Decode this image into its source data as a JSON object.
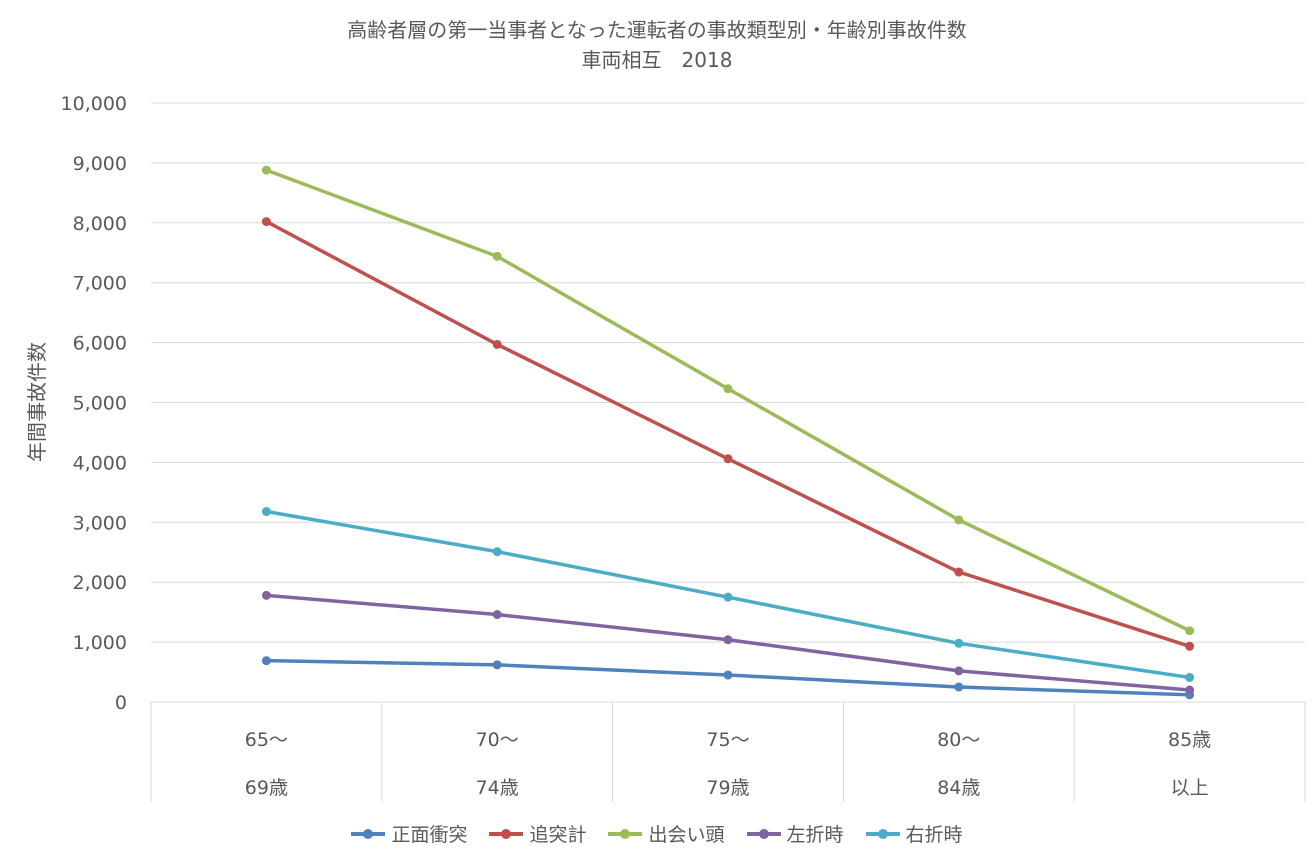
{
  "chart_data": {
    "type": "line",
    "title": "高齢者層の第一当事者となった運転者の事故類型別・年齢別事故件数",
    "subtitle": "車両相互　2018",
    "xlabel": "",
    "ylabel": "年間事故件数",
    "ylim": [
      0,
      10000
    ],
    "yticks": [
      "0",
      "1,000",
      "2,000",
      "3,000",
      "4,000",
      "5,000",
      "6,000",
      "7,000",
      "8,000",
      "9,000",
      "10,000"
    ],
    "categories": [
      [
        "65〜",
        "69歳"
      ],
      [
        "70〜",
        "74歳"
      ],
      [
        "75〜",
        "79歳"
      ],
      [
        "80〜",
        "84歳"
      ],
      [
        "85歳",
        "以上"
      ]
    ],
    "grid": true,
    "legend_position": "bottom",
    "series": [
      {
        "name": "正面衝突",
        "color": "#4f81bd",
        "values": [
          690,
          620,
          450,
          250,
          120
        ]
      },
      {
        "name": "追突計",
        "color": "#c0504d",
        "values": [
          8020,
          5970,
          4060,
          2170,
          930
        ]
      },
      {
        "name": "出会い頭",
        "color": "#9bbb59",
        "values": [
          8880,
          7440,
          5230,
          3040,
          1190
        ]
      },
      {
        "name": "左折時",
        "color": "#8064a2",
        "values": [
          1780,
          1460,
          1040,
          520,
          200
        ]
      },
      {
        "name": "右折時",
        "color": "#4bacc6",
        "values": [
          3180,
          2510,
          1750,
          980,
          410
        ]
      }
    ]
  }
}
